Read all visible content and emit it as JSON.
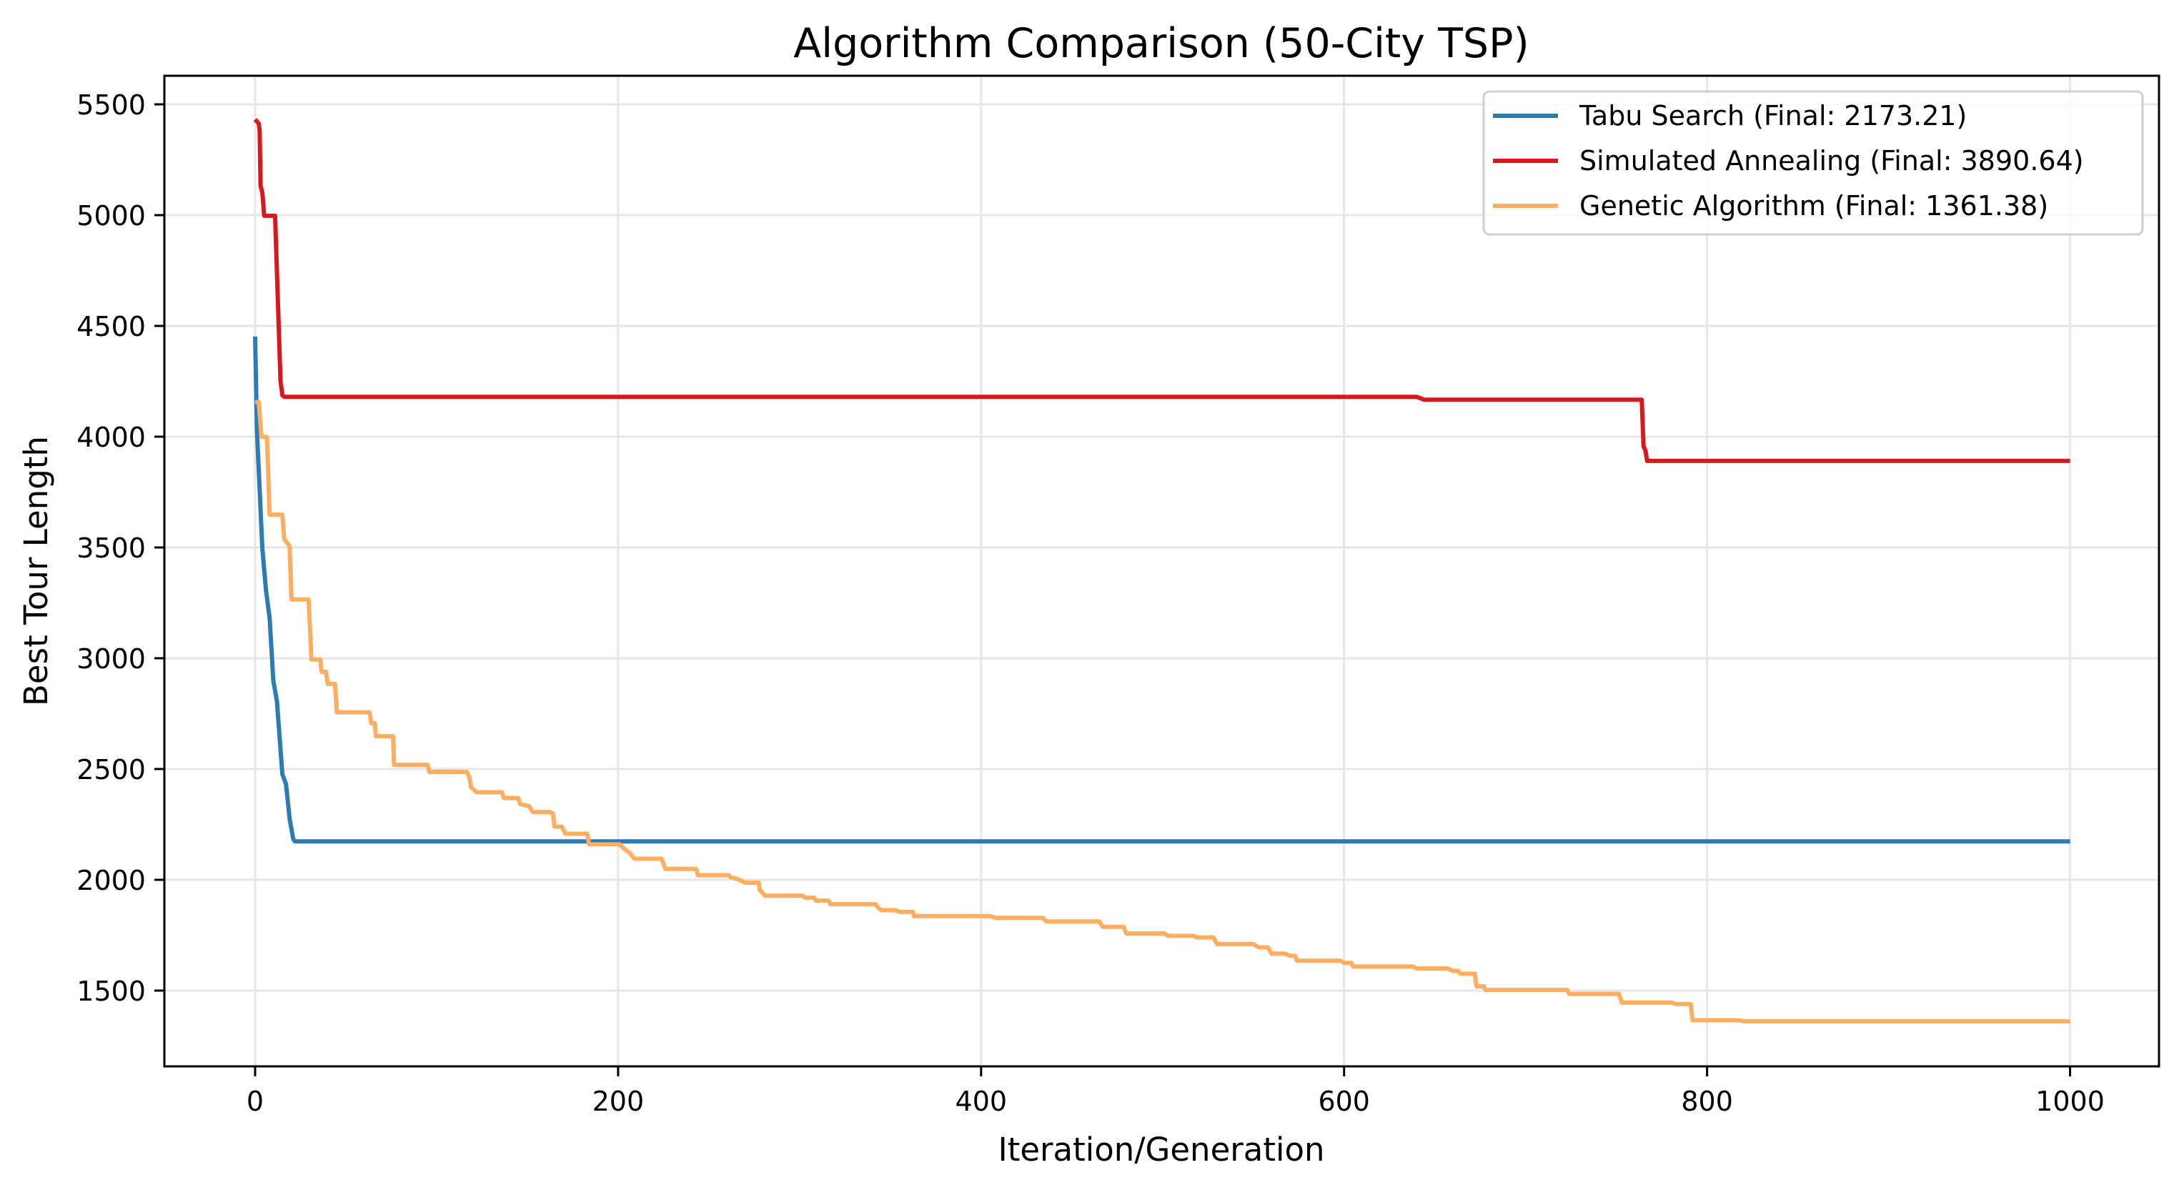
{
  "chart_data": {
    "type": "line",
    "title": "Algorithm Comparison (50-City TSP)",
    "xlabel": "Iteration/Generation",
    "ylabel": "Best Tour Length",
    "xlim": [
      -50,
      1049
    ],
    "ylim": [
      1158,
      5629
    ],
    "xticks": [
      0,
      200,
      400,
      600,
      800,
      1000
    ],
    "xtick_labels": [
      "0",
      "200",
      "400",
      "600",
      "800",
      "1000"
    ],
    "yticks": [
      1500,
      2000,
      2500,
      3000,
      3500,
      4000,
      4500,
      5000,
      5500
    ],
    "ytick_labels": [
      "1500",
      "2000",
      "2500",
      "3000",
      "3500",
      "4000",
      "4500",
      "5000",
      "5500"
    ],
    "grid": true,
    "legend_position": "top-right",
    "series": [
      {
        "name": "Tabu Search (Final: 2173.21)",
        "color": "#2c7bb6",
        "points": [
          [
            0,
            4452
          ],
          [
            1,
            4030
          ],
          [
            4,
            3494
          ],
          [
            6,
            3306
          ],
          [
            8,
            3181
          ],
          [
            10,
            2900
          ],
          [
            12,
            2806
          ],
          [
            15,
            2477
          ],
          [
            17,
            2432
          ],
          [
            19,
            2277
          ],
          [
            21,
            2184
          ],
          [
            22,
            2173.21
          ],
          [
            1000,
            2173.21
          ]
        ]
      },
      {
        "name": "Simulated Annealing (Final: 3890.64)",
        "color": "#d7191c",
        "points": [
          [
            0,
            5432
          ],
          [
            2,
            5413
          ],
          [
            2.5,
            5381
          ],
          [
            3,
            5133
          ],
          [
            4,
            5100
          ],
          [
            5,
            4997
          ],
          [
            11,
            4997
          ],
          [
            14,
            4252
          ],
          [
            15,
            4187
          ],
          [
            16,
            4180
          ],
          [
            640,
            4180
          ],
          [
            644,
            4167
          ],
          [
            764,
            4167
          ],
          [
            765,
            3955
          ],
          [
            766,
            3939
          ],
          [
            767,
            3890.64
          ],
          [
            1000,
            3890.64
          ]
        ]
      },
      {
        "name": "Genetic Algorithm (Final: 1361.38)",
        "color": "#fdae61",
        "points": [
          [
            0,
            4156
          ],
          [
            2,
            4156
          ],
          [
            3.5,
            4000
          ],
          [
            6.5,
            3998
          ],
          [
            8,
            3648
          ],
          [
            15,
            3648
          ],
          [
            16,
            3539
          ],
          [
            19,
            3506
          ],
          [
            19.5,
            3384
          ],
          [
            20,
            3265
          ],
          [
            29.5,
            3265
          ],
          [
            31,
            2994
          ],
          [
            36,
            2994
          ],
          [
            36.6,
            2939
          ],
          [
            39,
            2939
          ],
          [
            40,
            2884
          ],
          [
            44,
            2884
          ],
          [
            45,
            2756
          ],
          [
            63,
            2756
          ],
          [
            64,
            2707
          ],
          [
            66,
            2707
          ],
          [
            66.5,
            2648
          ],
          [
            76,
            2648
          ],
          [
            76.5,
            2519
          ],
          [
            95,
            2519
          ],
          [
            96,
            2487
          ],
          [
            116.6,
            2487
          ],
          [
            118,
            2465
          ],
          [
            119,
            2417
          ],
          [
            122,
            2395
          ],
          [
            136,
            2395
          ],
          [
            137,
            2369
          ],
          [
            145,
            2369
          ],
          [
            146,
            2342
          ],
          [
            151,
            2332
          ],
          [
            153,
            2306
          ],
          [
            162,
            2306
          ],
          [
            164,
            2300
          ],
          [
            165,
            2240
          ],
          [
            169,
            2240
          ],
          [
            171,
            2208
          ],
          [
            183,
            2208
          ],
          [
            184,
            2160
          ],
          [
            201,
            2160
          ],
          [
            203,
            2143
          ],
          [
            206,
            2124
          ],
          [
            209,
            2095
          ],
          [
            224,
            2095
          ],
          [
            226,
            2049
          ],
          [
            243,
            2049
          ],
          [
            244,
            2021
          ],
          [
            261,
            2021
          ],
          [
            262,
            2012
          ],
          [
            266,
            2003
          ],
          [
            270,
            1987
          ],
          [
            277.5,
            1987
          ],
          [
            278,
            1955
          ],
          [
            281,
            1928
          ],
          [
            302,
            1928
          ],
          [
            303,
            1919
          ],
          [
            308,
            1919
          ],
          [
            309,
            1906
          ],
          [
            316,
            1906
          ],
          [
            317,
            1890
          ],
          [
            342,
            1890
          ],
          [
            343,
            1876
          ],
          [
            345,
            1863
          ],
          [
            353,
            1863
          ],
          [
            355,
            1855
          ],
          [
            362.5,
            1855
          ],
          [
            363,
            1836
          ],
          [
            405,
            1836
          ],
          [
            408,
            1828
          ],
          [
            434,
            1828
          ],
          [
            436,
            1812
          ],
          [
            465,
            1812
          ],
          [
            467,
            1788
          ],
          [
            478.5,
            1788
          ],
          [
            480,
            1758
          ],
          [
            501,
            1758
          ],
          [
            503,
            1747
          ],
          [
            517,
            1747
          ],
          [
            519,
            1740
          ],
          [
            528,
            1740
          ],
          [
            530,
            1710
          ],
          [
            550,
            1710
          ],
          [
            553,
            1695
          ],
          [
            558,
            1695
          ],
          [
            560,
            1667
          ],
          [
            567.5,
            1667
          ],
          [
            570,
            1657
          ],
          [
            573,
            1657
          ],
          [
            574,
            1635
          ],
          [
            598,
            1635
          ],
          [
            600,
            1625
          ],
          [
            604,
            1625
          ],
          [
            605,
            1609
          ],
          [
            638,
            1609
          ],
          [
            640,
            1600
          ],
          [
            657,
            1600
          ],
          [
            660,
            1589
          ],
          [
            663,
            1589
          ],
          [
            664,
            1576
          ],
          [
            672,
            1576
          ],
          [
            673,
            1519
          ],
          [
            677,
            1519
          ],
          [
            678,
            1503
          ],
          [
            723,
            1503
          ],
          [
            724,
            1485
          ],
          [
            751.5,
            1485
          ],
          [
            753,
            1446
          ],
          [
            780.5,
            1446
          ],
          [
            783,
            1439
          ],
          [
            791,
            1439
          ],
          [
            792,
            1366
          ],
          [
            818,
            1366
          ],
          [
            820,
            1361.38
          ],
          [
            1000,
            1361.38
          ]
        ]
      }
    ]
  }
}
